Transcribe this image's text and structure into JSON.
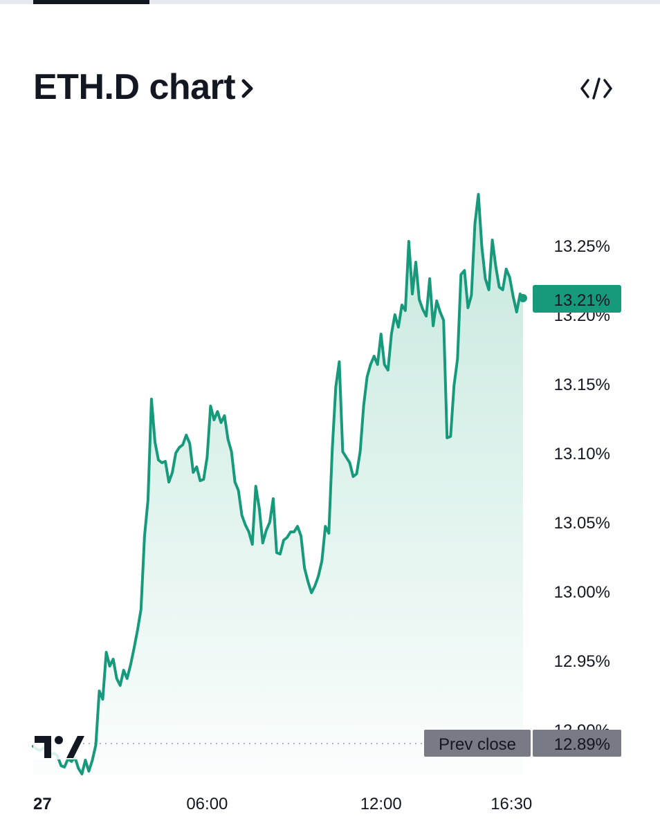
{
  "header": {
    "title": "ETH.D chart",
    "title_chevron_icon": "chevron-right-icon",
    "embed_icon": "code-embed-icon"
  },
  "colors": {
    "line": "#179a7b",
    "area_top": "#c5e8dd",
    "price_badge": "#179a7b",
    "prev_close_badge": "#787b86"
  },
  "chart_data": {
    "type": "area",
    "xlabel": "",
    "ylabel": "",
    "x_ticks": [
      {
        "label": "27",
        "t": 0.0
      },
      {
        "label": "06:00",
        "t": 6.0
      },
      {
        "label": "12:00",
        "t": 12.0
      },
      {
        "label": "16:30",
        "t": 16.5
      }
    ],
    "y_ticks": [
      "12.90%",
      "12.95%",
      "13.00%",
      "13.05%",
      "13.10%",
      "13.15%",
      "13.20%",
      "13.25%"
    ],
    "ylim": [
      12.89,
      13.3
    ],
    "last_price_label": "13.21%",
    "last_price_value": 13.21,
    "prev_close_label": "Prev close",
    "prev_close_value_label": "12.89%",
    "prev_close_value": 12.89,
    "logo": "tradingview-logo",
    "series": [
      {
        "x": [
          0.0,
          0.12,
          0.24,
          0.36,
          0.48,
          0.6,
          0.72,
          0.84,
          0.96,
          1.08,
          1.2,
          1.32,
          1.44,
          1.56,
          1.68,
          1.8,
          1.92,
          2.04,
          2.16,
          2.28,
          2.4,
          2.52,
          2.64,
          2.76,
          2.88,
          3.0,
          3.12,
          3.24,
          3.36,
          3.48,
          3.6,
          3.72,
          3.84,
          3.96,
          4.08,
          4.2,
          4.32,
          4.44,
          4.56,
          4.68,
          4.8,
          4.92,
          5.04,
          5.16,
          5.28,
          5.4,
          5.52,
          5.64,
          5.76,
          5.88,
          6.0,
          6.12,
          6.24,
          6.36,
          6.48,
          6.6,
          6.72,
          6.84,
          6.96,
          7.08,
          7.2,
          7.32,
          7.44,
          7.56,
          7.68,
          7.8,
          7.92,
          8.04,
          8.16,
          8.28,
          8.4,
          8.52,
          8.64,
          8.76,
          8.88,
          9.0,
          9.12,
          9.24,
          9.36,
          9.48,
          9.6,
          9.72,
          9.84,
          9.96,
          10.08,
          10.2,
          10.32,
          10.44,
          10.56,
          10.68,
          10.8,
          10.92,
          11.04,
          11.16,
          11.28,
          11.4,
          11.52,
          11.64,
          11.76,
          11.88,
          12.0,
          12.12,
          12.24,
          12.36,
          12.48,
          12.6,
          12.72,
          12.84,
          12.96,
          13.08,
          13.2,
          13.32,
          13.44,
          13.56,
          13.68,
          13.8,
          13.92,
          14.04,
          14.16,
          14.28,
          14.4,
          14.52,
          14.64,
          14.76,
          14.88,
          15.0,
          15.12,
          15.24,
          15.36,
          15.48,
          15.6,
          15.72,
          15.84,
          15.96,
          16.08,
          16.2,
          16.32,
          16.44,
          16.56,
          16.68,
          16.8,
          16.9
        ],
        "values": [
          12.888,
          12.886,
          12.885,
          12.887,
          12.884,
          12.882,
          12.883,
          12.881,
          12.874,
          12.873,
          12.879,
          12.877,
          12.88,
          12.872,
          12.868,
          12.878,
          12.87,
          12.878,
          12.889,
          12.928,
          12.922,
          12.956,
          12.946,
          12.951,
          12.937,
          12.932,
          12.943,
          12.937,
          12.947,
          12.959,
          12.972,
          12.987,
          13.04,
          13.066,
          13.139,
          13.108,
          13.095,
          13.093,
          13.094,
          13.079,
          13.086,
          13.1,
          13.104,
          13.106,
          13.113,
          13.107,
          13.086,
          13.09,
          13.08,
          13.081,
          13.097,
          13.134,
          13.124,
          13.13,
          13.122,
          13.127,
          13.11,
          13.101,
          13.079,
          13.073,
          13.055,
          13.048,
          13.043,
          13.034,
          13.076,
          13.06,
          13.035,
          13.044,
          13.05,
          13.067,
          13.028,
          13.027,
          13.037,
          13.039,
          13.043,
          13.043,
          13.047,
          13.04,
          13.017,
          13.007,
          12.999,
          13.004,
          13.011,
          13.022,
          13.047,
          13.042,
          13.103,
          13.148,
          13.166,
          13.101,
          13.097,
          13.093,
          13.083,
          13.085,
          13.101,
          13.134,
          13.155,
          13.164,
          13.17,
          13.164,
          13.186,
          13.164,
          13.16,
          13.186,
          13.2,
          13.191,
          13.207,
          13.203,
          13.253,
          13.215,
          13.238,
          13.211,
          13.204,
          13.199,
          13.226,
          13.192,
          13.21,
          13.202,
          13.196,
          13.111,
          13.112,
          13.149,
          13.168,
          13.229,
          13.232,
          13.205,
          13.214,
          13.266,
          13.287,
          13.249,
          13.226,
          13.218,
          13.254,
          13.235,
          13.22,
          13.218,
          13.233,
          13.227,
          13.213,
          13.202,
          13.215,
          13.212
        ]
      }
    ]
  }
}
